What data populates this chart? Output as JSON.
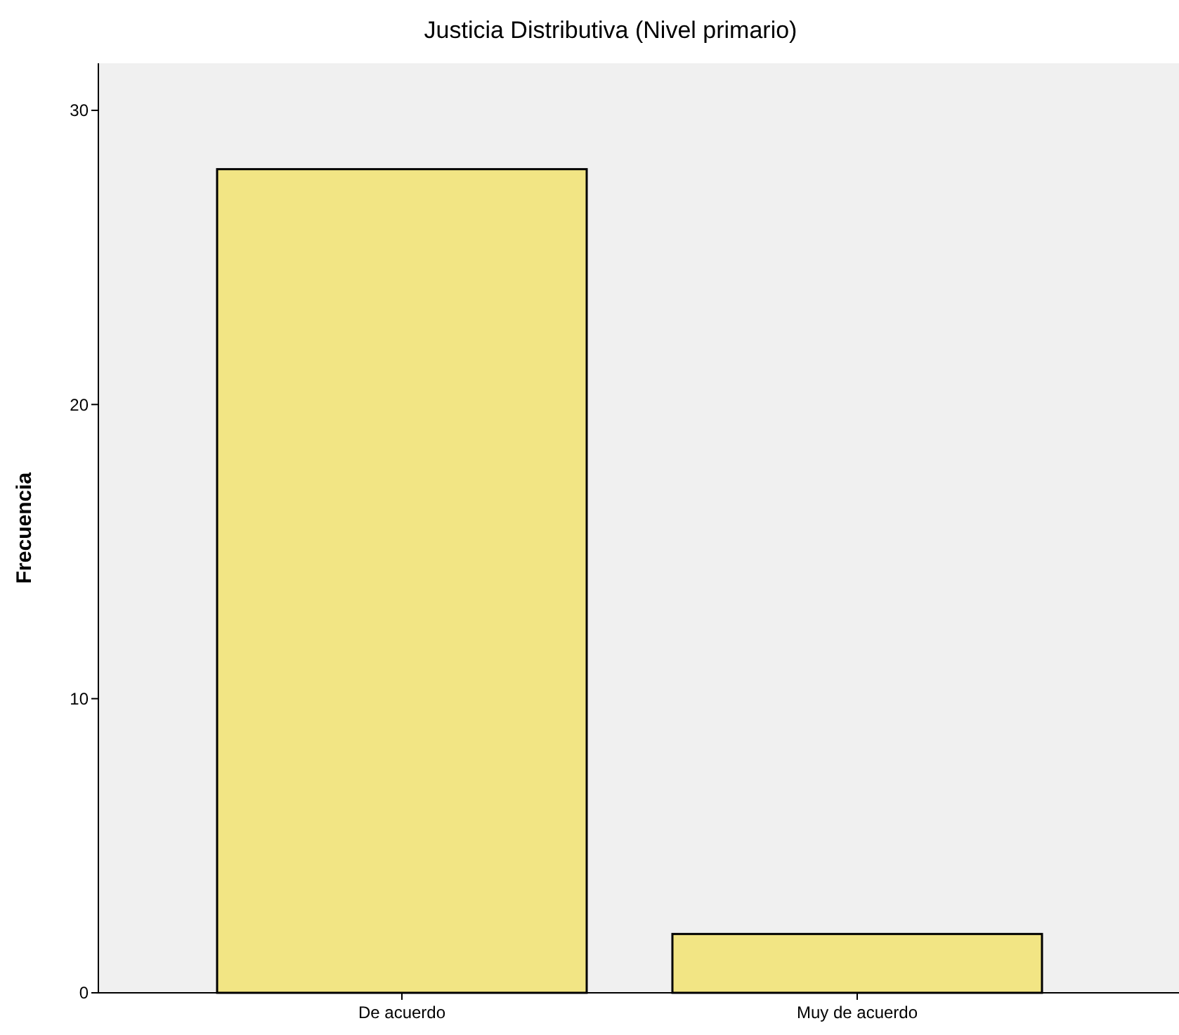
{
  "chart_data": {
    "type": "bar",
    "title": "Justicia Distributiva (Nivel primario)",
    "ylabel": "Frecuencia",
    "categories": [
      "De acuerdo",
      "Muy de acuerdo"
    ],
    "values": [
      28,
      2
    ],
    "color": "#f2e584",
    "ylim": [
      0,
      31.6
    ],
    "yticks": [
      0,
      10,
      20,
      30
    ],
    "grid": false
  }
}
